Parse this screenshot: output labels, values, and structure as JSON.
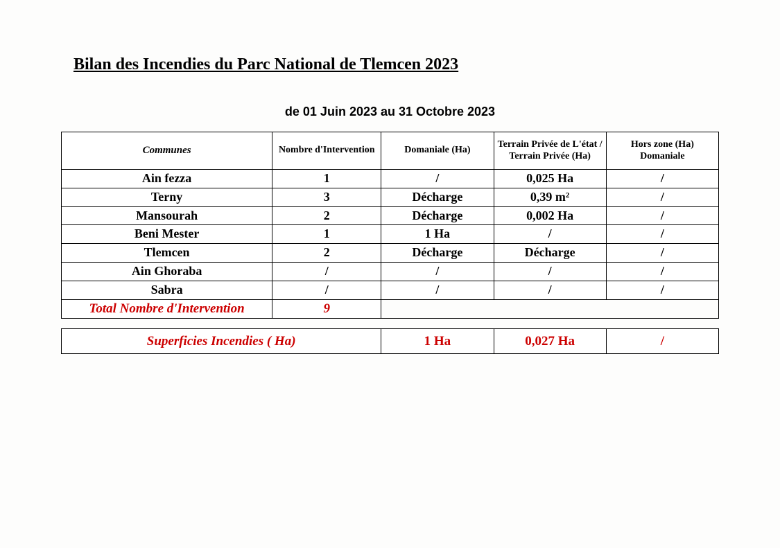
{
  "title": "Bilan des Incendies  du Parc National de Tlemcen 2023",
  "subtitle": "de   01  Juin 2023   au 31 Octobre 2023",
  "columns": [
    "Communes",
    "Nombre d'Intervention",
    "Domaniale (Ha)",
    "Terrain Privée de L'état / Terrain Privée (Ha)",
    "Hors zone (Ha) Domaniale"
  ],
  "rows": [
    {
      "commune": "Ain fezza",
      "nb": "1",
      "domaniale": "/",
      "prive": "0,025 Ha",
      "hors": "/"
    },
    {
      "commune": "Terny",
      "nb": "3",
      "domaniale": "Décharge",
      "prive": "0,39 m²",
      "hors": "/"
    },
    {
      "commune": "Mansourah",
      "nb": "2",
      "domaniale": "Décharge",
      "prive": "0,002 Ha",
      "hors": "/"
    },
    {
      "commune": "Beni Mester",
      "nb": "1",
      "domaniale": "1 Ha",
      "prive": "/",
      "hors": "/"
    },
    {
      "commune": "Tlemcen",
      "nb": "2",
      "domaniale": "Décharge",
      "prive": "Décharge",
      "hors": "/"
    },
    {
      "commune": "Ain Ghoraba",
      "nb": "/",
      "domaniale": "/",
      "prive": "/",
      "hors": "/"
    },
    {
      "commune": "Sabra",
      "nb": "/",
      "domaniale": "/",
      "prive": "/",
      "hors": "/"
    }
  ],
  "total": {
    "label": "Total  Nombre d'Intervention",
    "value": "9"
  },
  "summary": {
    "label": "Superficies Incendies ( Ha)",
    "domaniale": "1 Ha",
    "prive": "0,027 Ha",
    "hors": "/"
  },
  "colors": {
    "accent": "#cc0000",
    "text": "#000000",
    "background": "#fdfdfc"
  }
}
